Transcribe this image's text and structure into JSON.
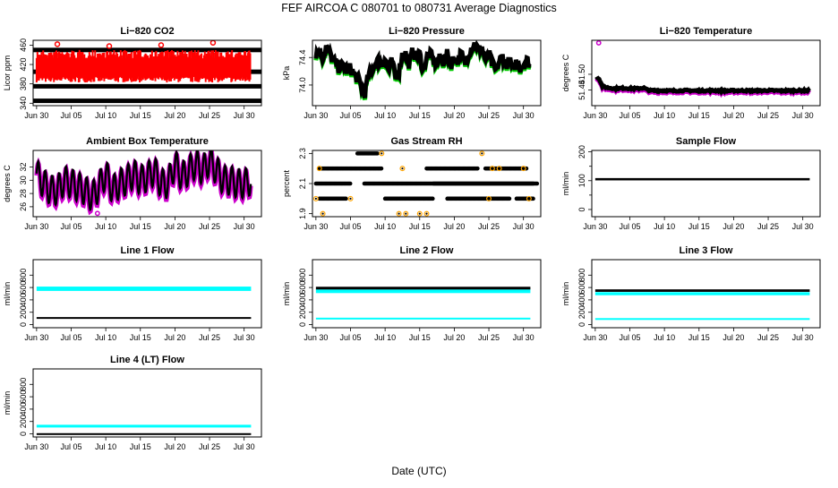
{
  "figure": {
    "title": "FEF   AIRCOA C   080701 to 080731   Average Diagnostics",
    "xlabel": "Date (UTC)"
  },
  "chart_data": [
    {
      "type": "scatter",
      "title": "Li−820 CO2",
      "ylabel": "Licor ppm",
      "ylim": [
        335,
        470
      ],
      "yticks": [
        "340",
        "380",
        "420",
        "460"
      ],
      "ytick_values": [
        340,
        380,
        420,
        460
      ],
      "xticks": [
        "Jun 30",
        "Jul 05",
        "Jul 10",
        "Jul 15",
        "Jul 20",
        "Jul 25",
        "Jul 30"
      ],
      "xlim": [
        0.5,
        33.5
      ],
      "series": [
        {
          "name": "ref bands",
          "color": "#000000",
          "kind": "hbands",
          "values": [
            450,
            405,
            375,
            345
          ]
        },
        {
          "name": "ambient",
          "color": "#ff0000",
          "kind": "band",
          "y_low": 383,
          "y_high": 450,
          "spikes": [
            462,
            458,
            460,
            465
          ]
        }
      ]
    },
    {
      "type": "line",
      "title": "Li−820 Pressure",
      "ylabel": "kPa",
      "ylim": [
        73.7,
        74.65
      ],
      "yticks": [
        "74.0",
        "74.4"
      ],
      "ytick_values": [
        74.0,
        74.4
      ],
      "xticks": [
        "Jun 30",
        "Jul 05",
        "Jul 10",
        "Jul 15",
        "Jul 20",
        "Jul 25",
        "Jul 30"
      ],
      "xlim": [
        0.5,
        33.5
      ],
      "series": [
        {
          "name": "pressure",
          "color": "#000000",
          "shadow": "#00cc00",
          "kind": "thickline",
          "x": [
            1,
            1.5,
            2,
            2.5,
            3,
            3.5,
            4,
            4.5,
            5,
            5.5,
            6,
            6.5,
            7,
            7.5,
            8,
            8.5,
            9,
            9.5,
            10,
            10.5,
            11,
            11.5,
            12,
            12.5,
            13,
            13.5,
            14,
            14.5,
            15,
            15.5,
            16,
            16.5,
            17,
            17.5,
            18,
            18.5,
            19,
            19.5,
            20,
            20.5,
            21,
            21.5,
            22,
            22.5,
            23,
            23.5,
            24,
            24.5,
            25,
            25.5,
            26,
            26.5,
            27,
            27.5,
            28,
            28.5,
            29,
            29.5,
            30,
            30.5,
            31,
            31.5,
            32
          ],
          "values": [
            74.45,
            74.5,
            74.4,
            74.55,
            74.45,
            74.35,
            74.3,
            74.25,
            74.3,
            74.2,
            74.25,
            74.15,
            74.1,
            74.0,
            73.85,
            74.1,
            74.2,
            74.3,
            74.35,
            74.3,
            74.4,
            74.2,
            74.35,
            74.1,
            74.2,
            74.45,
            74.45,
            74.3,
            74.5,
            74.4,
            74.45,
            74.2,
            74.4,
            74.45,
            74.35,
            74.3,
            74.4,
            74.35,
            74.45,
            74.3,
            74.4,
            74.35,
            74.45,
            74.3,
            74.45,
            74.55,
            74.6,
            74.5,
            74.55,
            74.35,
            74.45,
            74.3,
            74.2,
            74.35,
            74.4,
            74.3,
            74.35,
            74.2,
            74.35,
            74.25,
            74.3,
            74.35,
            74.3
          ],
          "amp": 0.08
        }
      ]
    },
    {
      "type": "line",
      "title": "Li−820 Temperature",
      "ylabel": "degrees C",
      "ylim": [
        51.38,
        51.63
      ],
      "yticks": [
        "51.44",
        "51.50"
      ],
      "ytick_values": [
        51.44,
        51.5
      ],
      "extra_tick_labels": [
        "51.50"
      ],
      "xticks": [
        "Jun 30",
        "Jul 05",
        "Jul 10",
        "Jul 15",
        "Jul 20",
        "Jul 25",
        "Jul 30"
      ],
      "xlim": [
        0.5,
        33.5
      ],
      "series": [
        {
          "name": "temperature",
          "color": "#000000",
          "shadow": "#cc00cc",
          "kind": "thickline",
          "x": [
            1.2,
            1.5,
            1.8,
            2.0,
            2.5,
            3,
            4,
            5,
            6,
            7,
            8,
            8.6,
            9,
            10,
            12,
            14,
            16,
            18,
            20,
            22,
            24,
            26,
            28,
            30,
            32
          ],
          "values": [
            51.49,
            51.485,
            51.47,
            51.455,
            51.45,
            51.448,
            51.445,
            51.447,
            51.446,
            51.445,
            51.448,
            51.44,
            51.438,
            51.438,
            51.437,
            51.438,
            51.437,
            51.438,
            51.437,
            51.438,
            51.437,
            51.438,
            51.437,
            51.438,
            51.437
          ],
          "amp": 0.003,
          "outlier": [
            1.5,
            51.62
          ]
        }
      ]
    },
    {
      "type": "line",
      "title": "Ambient Box Temperature",
      "ylabel": "degrees C",
      "ylim": [
        24.5,
        34.5
      ],
      "yticks": [
        "26",
        "28",
        "30",
        "32"
      ],
      "ytick_values": [
        26,
        28,
        30,
        32
      ],
      "extra_tick_labels": [
        "30"
      ],
      "xticks": [
        "Jun 30",
        "Jul 05",
        "Jul 10",
        "Jul 15",
        "Jul 20",
        "Jul 25",
        "Jul 30"
      ],
      "xlim": [
        0.5,
        33.5
      ],
      "series": [
        {
          "name": "box temperature",
          "color": "#000000",
          "shadow": "#cc00cc",
          "kind": "diurnal",
          "x": [
            1,
            2,
            3,
            4,
            5,
            6,
            7,
            8,
            9,
            10,
            11,
            12,
            13,
            14,
            15,
            16,
            17,
            18,
            19,
            20,
            21,
            22,
            23,
            24,
            25,
            26,
            27,
            28,
            29,
            30,
            31,
            32
          ],
          "values": [
            31.0,
            29.5,
            28.5,
            28.5,
            30.0,
            29.5,
            29.0,
            28.5,
            27.5,
            29.0,
            31.0,
            28.5,
            29.5,
            30.0,
            31.0,
            30.0,
            30.5,
            31.5,
            29.5,
            29.5,
            32.5,
            30.5,
            31.5,
            32.5,
            31.5,
            33.0,
            31.5,
            30.0,
            30.0,
            29.5,
            29.5,
            30.0
          ],
          "amp": 2.2,
          "outlier": [
            9.8,
            25.0
          ]
        }
      ]
    },
    {
      "type": "scatter",
      "title": "Gas Stream RH",
      "ylabel": "percent",
      "ylim": [
        1.88,
        2.32
      ],
      "yticks": [
        "1.9",
        "2.1",
        "2.3"
      ],
      "ytick_values": [
        1.9,
        2.1,
        2.3
      ],
      "xticks": [
        "Jun 30",
        "Jul 05",
        "Jul 10",
        "Jul 15",
        "Jul 20",
        "Jul 25",
        "Jul 30"
      ],
      "xlim": [
        0.5,
        33.5
      ],
      "series": [
        {
          "name": "rh",
          "color": "#000000",
          "accent": "#ffa500",
          "kind": "levels",
          "segments": [
            [
              2.2,
              1.5,
              10.5
            ],
            [
              2.1,
              1.0,
              6.0
            ],
            [
              2.0,
              1.5,
              5.5
            ],
            [
              2.3,
              7.0,
              10.0
            ],
            [
              2.1,
              8.0,
              33.0
            ],
            [
              2.0,
              11.0,
              18.0
            ],
            [
              2.2,
              17.0,
              24.5
            ],
            [
              2.0,
              20.0,
              29.0
            ],
            [
              2.2,
              25.5,
              31.5
            ],
            [
              2.0,
              30.0,
              32.5
            ],
            [
              2.1,
              18.0,
              32.5
            ]
          ],
          "scatter": [
            [
              2.2,
              1.5
            ],
            [
              1.9,
              2.0
            ],
            [
              2.0,
              1.0
            ],
            [
              2.3,
              25.0
            ],
            [
              2.2,
              26.5
            ],
            [
              2.2,
              27.5
            ],
            [
              2.2,
              31.0
            ],
            [
              2.0,
              26.0
            ],
            [
              1.9,
              13.0
            ],
            [
              1.9,
              14.0
            ],
            [
              1.9,
              16.0
            ],
            [
              1.9,
              17.0
            ],
            [
              2.0,
              6.0
            ],
            [
              2.2,
              13.5
            ],
            [
              2.3,
              10.5
            ],
            [
              2.0,
              31.8
            ]
          ]
        }
      ]
    },
    {
      "type": "line",
      "title": "Sample Flow",
      "ylabel": "ml/min",
      "ylim": [
        -25,
        205
      ],
      "yticks": [
        "0",
        "100",
        "200"
      ],
      "ytick_values": [
        0,
        100,
        200
      ],
      "extra_tick_labels": [
        "50",
        "150"
      ],
      "extra_tick_values": [
        50,
        150
      ],
      "xticks": [
        "Jun 30",
        "Jul 05",
        "Jul 10",
        "Jul 15",
        "Jul 20",
        "Jul 25",
        "Jul 30"
      ],
      "xlim": [
        0.5,
        33.5
      ],
      "series": [
        {
          "name": "sample flow",
          "color": "#000000",
          "shadow": "#0000ff",
          "kind": "flat",
          "values": [
            105
          ],
          "amp": 4
        }
      ]
    },
    {
      "type": "line",
      "title": "Line 1 Flow",
      "ylabel": "ml/min",
      "ylim": [
        -50,
        1050
      ],
      "yticks": [
        "0",
        "200",
        "400",
        "600",
        "800"
      ],
      "ytick_values": [
        0,
        200,
        400,
        600,
        800
      ],
      "xticks": [
        "Jun 30",
        "Jul 05",
        "Jul 10",
        "Jul 15",
        "Jul 20",
        "Jul 25",
        "Jul 30"
      ],
      "xlim": [
        0.5,
        33.5
      ],
      "series": [
        {
          "name": "ambient",
          "color": "#00ffff",
          "kind": "flat",
          "values": [
            580
          ],
          "amp": 35
        },
        {
          "name": "reference",
          "color": "#000000",
          "kind": "flat",
          "values": [
            110
          ],
          "amp": 12
        }
      ]
    },
    {
      "type": "line",
      "title": "Line 2 Flow",
      "ylabel": "ml/min",
      "ylim": [
        -50,
        1050
      ],
      "yticks": [
        "0",
        "200",
        "400",
        "600",
        "800"
      ],
      "ytick_values": [
        0,
        200,
        400,
        600,
        800
      ],
      "xticks": [
        "Jun 30",
        "Jul 05",
        "Jul 10",
        "Jul 15",
        "Jul 20",
        "Jul 25",
        "Jul 30"
      ],
      "xlim": [
        0.5,
        33.5
      ],
      "series": [
        {
          "name": "ambient",
          "color": "#00ffff",
          "kind": "flat",
          "values": [
            540
          ],
          "amp": 30
        },
        {
          "name": "sample",
          "color": "#000000",
          "kind": "flat",
          "values": [
            590
          ],
          "amp": 22
        },
        {
          "name": "reference",
          "color": "#00ffff",
          "kind": "flat",
          "values": [
            100
          ],
          "amp": 12
        }
      ]
    },
    {
      "type": "line",
      "title": "Line 3 Flow",
      "ylabel": "ml/min",
      "ylim": [
        -50,
        1050
      ],
      "yticks": [
        "0",
        "200",
        "400",
        "600",
        "800"
      ],
      "ytick_values": [
        0,
        200,
        400,
        600,
        800
      ],
      "xticks": [
        "Jun 30",
        "Jul 05",
        "Jul 10",
        "Jul 15",
        "Jul 20",
        "Jul 25",
        "Jul 30"
      ],
      "xlim": [
        0.5,
        33.5
      ],
      "series": [
        {
          "name": "ambient",
          "color": "#00ffff",
          "kind": "flat",
          "values": [
            500
          ],
          "amp": 25
        },
        {
          "name": "sample",
          "color": "#000000",
          "kind": "flat",
          "values": [
            550
          ],
          "amp": 20
        },
        {
          "name": "reference",
          "color": "#00ffff",
          "kind": "flat",
          "values": [
            95
          ],
          "amp": 10
        }
      ]
    },
    {
      "type": "line",
      "title": "Line 4 (LT) Flow",
      "ylabel": "ml/min",
      "ylim": [
        -50,
        1050
      ],
      "yticks": [
        "0",
        "200",
        "400",
        "600",
        "800"
      ],
      "ytick_values": [
        0,
        200,
        400,
        600,
        800
      ],
      "xticks": [
        "Jun 30",
        "Jul 05",
        "Jul 10",
        "Jul 15",
        "Jul 20",
        "Jul 25",
        "Jul 30"
      ],
      "xlim": [
        0.5,
        33.5
      ],
      "series": [
        {
          "name": "ambient",
          "color": "#00ffff",
          "kind": "flat",
          "values": [
            125
          ],
          "amp": 22
        },
        {
          "name": "reference",
          "color": "#000000",
          "kind": "flat",
          "values": [
            5
          ],
          "amp": 6
        }
      ]
    }
  ]
}
